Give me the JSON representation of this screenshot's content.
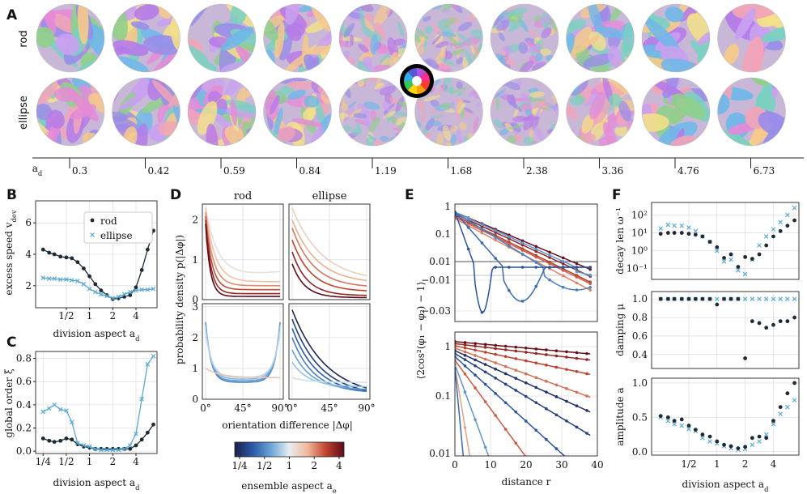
{
  "panel_letters": [
    "A",
    "B",
    "C",
    "D",
    "E",
    "F"
  ],
  "row_labels": [
    "rod",
    "ellipse"
  ],
  "panel_a": {
    "axis_label": "a",
    "axis_label_sub": "d",
    "aspects": [
      "0.3",
      "0.42",
      "0.59",
      "0.84",
      "1.19",
      "1.68",
      "2.38",
      "3.36",
      "4.76",
      "6.73"
    ],
    "texture_contrast_rod": [
      0.9,
      0.85,
      0.8,
      0.7,
      0.35,
      0.2,
      0.25,
      0.6,
      0.85,
      1.0
    ],
    "texture_contrast_ellipse": [
      0.75,
      0.7,
      0.65,
      0.6,
      0.2,
      0.15,
      0.2,
      0.5,
      0.85,
      0.95
    ]
  },
  "colors": {
    "rod": "#1f2a33",
    "ellipse": "#5aa9d4",
    "grid": "#d6d6d6"
  },
  "chart_data": [
    {
      "id": "B",
      "type": "line",
      "ylabel": "excess speed v_dev",
      "xlabel": "division aspect a_d",
      "xscale": "log2",
      "xlim": [
        0.2,
        7.5
      ],
      "ylim": [
        0.6,
        7.4
      ],
      "xticks": [
        {
          "v": 0.5,
          "label": "1/2"
        },
        {
          "v": 1,
          "label": "1"
        },
        {
          "v": 2,
          "label": "2"
        },
        {
          "v": 4,
          "label": "4"
        }
      ],
      "yticks": [
        {
          "v": 2,
          "label": "2"
        },
        {
          "v": 4,
          "label": "4"
        },
        {
          "v": 6,
          "label": "6"
        }
      ],
      "legend": [
        "rod",
        "ellipse"
      ],
      "series": [
        {
          "name": "rod",
          "marker": "dot",
          "x": [
            0.25,
            0.3,
            0.35,
            0.42,
            0.5,
            0.59,
            0.7,
            0.84,
            1,
            1.19,
            1.41,
            1.68,
            2,
            2.38,
            2.83,
            3.36,
            4,
            4.76,
            5.66,
            6.73
          ],
          "y": [
            4.3,
            4.1,
            4.0,
            3.85,
            3.8,
            3.75,
            3.5,
            3.1,
            2.6,
            2.1,
            1.7,
            1.4,
            1.15,
            1.2,
            1.3,
            1.4,
            1.9,
            3.0,
            4.3,
            5.5
          ]
        },
        {
          "name": "ellipse",
          "marker": "x",
          "x": [
            0.25,
            0.3,
            0.35,
            0.42,
            0.5,
            0.59,
            0.7,
            0.84,
            1,
            1.19,
            1.41,
            1.68,
            2,
            2.38,
            2.83,
            3.36,
            4,
            4.76,
            5.66,
            6.73
          ],
          "y": [
            2.5,
            2.45,
            2.45,
            2.4,
            2.4,
            2.35,
            2.3,
            2.1,
            1.8,
            1.6,
            1.45,
            1.35,
            1.2,
            1.3,
            1.45,
            1.6,
            1.7,
            1.75,
            1.75,
            1.8
          ]
        }
      ]
    },
    {
      "id": "C",
      "type": "line",
      "ylabel": "global order ξ",
      "xlabel": "division aspect a_d",
      "xscale": "log2",
      "xlim": [
        0.2,
        7.5
      ],
      "ylim": [
        -0.02,
        0.86
      ],
      "xticks": [
        {
          "v": 0.25,
          "label": "1/4"
        },
        {
          "v": 0.5,
          "label": "1/2"
        },
        {
          "v": 1,
          "label": "1"
        },
        {
          "v": 2,
          "label": "2"
        },
        {
          "v": 4,
          "label": "4"
        }
      ],
      "yticks": [
        {
          "v": 0,
          "label": "0.0"
        },
        {
          "v": 0.2,
          "label": "0.2"
        },
        {
          "v": 0.4,
          "label": "0.4"
        },
        {
          "v": 0.6,
          "label": "0.6"
        },
        {
          "v": 0.8,
          "label": "0.8"
        }
      ],
      "series": [
        {
          "name": "rod",
          "marker": "dot",
          "x": [
            0.25,
            0.3,
            0.35,
            0.42,
            0.5,
            0.59,
            0.7,
            0.84,
            1,
            1.19,
            1.41,
            1.68,
            2,
            2.38,
            2.83,
            3.36,
            4,
            4.76,
            5.66,
            6.73
          ],
          "y": [
            0.11,
            0.09,
            0.08,
            0.09,
            0.11,
            0.1,
            0.06,
            0.04,
            0.03,
            0.02,
            0.02,
            0.02,
            0.02,
            0.02,
            0.02,
            0.02,
            0.05,
            0.1,
            0.16,
            0.23
          ]
        },
        {
          "name": "ellipse",
          "marker": "x",
          "x": [
            0.25,
            0.3,
            0.35,
            0.42,
            0.5,
            0.59,
            0.7,
            0.84,
            1,
            1.19,
            1.41,
            1.68,
            2,
            2.38,
            2.83,
            3.36,
            4,
            4.76,
            5.66,
            6.73
          ],
          "y": [
            0.34,
            0.37,
            0.4,
            0.36,
            0.35,
            0.25,
            0.07,
            0.05,
            0.04,
            0.02,
            0.01,
            0.01,
            0.01,
            0.01,
            0.02,
            0.05,
            0.15,
            0.45,
            0.75,
            0.82
          ]
        }
      ]
    },
    {
      "id": "D",
      "type": "line",
      "col_titles": [
        "rod",
        "ellipse"
      ],
      "ylabel": "probability density p(|Δφ|)",
      "xlabel": "orientation difference |Δφ|",
      "xticks": [
        "0°",
        "45°",
        "90°"
      ],
      "yticks_top": [
        "0",
        "1",
        "2"
      ],
      "yticks_bottom": [
        "0",
        "1",
        "2",
        "3"
      ],
      "ylim_top": [
        0,
        2.4
      ],
      "ylim_bottom": [
        0,
        3.1
      ],
      "panels": [
        {
          "pos": "top-rod",
          "ids": [
            0.55,
            0.7,
            0.85,
            1.0,
            1.15,
            1.3
          ],
          "curves": [
            {
              "a": 2.3,
              "k": 6,
              "b": 0.55,
              "t": "rise"
            },
            {
              "a": 2.3,
              "k": 8,
              "b": 0.45,
              "t": "flat"
            },
            {
              "a": 2.2,
              "k": 10,
              "b": 0.35,
              "t": "flat"
            },
            {
              "a": 2.1,
              "k": 12,
              "b": 0.25,
              "t": "flat"
            },
            {
              "a": 2.0,
              "k": 14,
              "b": 0.15,
              "t": "flat"
            },
            {
              "a": 1.9,
              "k": 16,
              "b": 0.08,
              "t": "flat"
            }
          ]
        },
        {
          "pos": "top-ellipse",
          "curves": [
            {
              "a": 2.3,
              "k": 2.5,
              "b": 0.45,
              "t": "flat"
            },
            {
              "a": 2.0,
              "k": 3,
              "b": 0.4,
              "t": "flat"
            },
            {
              "a": 1.8,
              "k": 3.5,
              "b": 0.3,
              "t": "flat"
            },
            {
              "a": 1.5,
              "k": 4,
              "b": 0.2,
              "t": "flat"
            },
            {
              "a": 1.2,
              "k": 5,
              "b": 0.1,
              "t": "flat"
            },
            {
              "a": 0.9,
              "k": 6,
              "b": 0.05,
              "t": "flat"
            }
          ]
        },
        {
          "pos": "bottom-rod",
          "curves": [
            {
              "a": 2.5,
              "k": 14,
              "b": 0.55,
              "t": "u"
            },
            {
              "a": 2.5,
              "k": 14,
              "b": 0.6,
              "t": "u"
            },
            {
              "a": 2.4,
              "k": 13,
              "b": 0.65,
              "t": "u"
            },
            {
              "a": 2.2,
              "k": 12,
              "b": 0.7,
              "t": "u"
            },
            {
              "a": 1.0,
              "k": 5,
              "b": 0.7,
              "t": "flat"
            }
          ]
        },
        {
          "pos": "bottom-ellipse",
          "curves": [
            {
              "a": 2.9,
              "k": 2.2,
              "b": 0.05,
              "t": "flat"
            },
            {
              "a": 2.6,
              "k": 2.6,
              "b": 0.1,
              "t": "flat"
            },
            {
              "a": 2.3,
              "k": 3.0,
              "b": 0.15,
              "t": "flat"
            },
            {
              "a": 2.0,
              "k": 3.5,
              "b": 0.2,
              "t": "flat"
            },
            {
              "a": 1.6,
              "k": 4,
              "b": 0.3,
              "t": "flat"
            },
            {
              "a": 1.2,
              "k": 4.5,
              "b": 0.4,
              "t": "flat"
            },
            {
              "a": 0.7,
              "k": 5,
              "b": 0.55,
              "t": "flat"
            }
          ]
        }
      ]
    },
    {
      "id": "E",
      "type": "line",
      "ylabel": "⟨2cos²(φ₁ − φ₂) − 1⟩",
      "xlabel": "distance r",
      "xlim": [
        0,
        40
      ],
      "xticks": [
        "0",
        "10",
        "20",
        "30",
        "40"
      ],
      "yticks_top": [
        "1",
        "0.1",
        "0.01",
        "−0.01",
        "−0.03"
      ],
      "yticks_bottom": [
        "1",
        "0.1",
        "0.01"
      ],
      "top_curves": [
        {
          "l": 0.9,
          "r0": 35,
          "d": 0
        },
        {
          "l": 0.85,
          "r0": 32,
          "d": 0
        },
        {
          "l": 0.8,
          "r0": 30,
          "d": 0
        },
        {
          "l": 0.75,
          "r0": 30,
          "d": 0
        },
        {
          "l": 0.7,
          "r0": 28,
          "d": 0
        },
        {
          "l": 0.6,
          "r0": 30,
          "d": 0.02
        },
        {
          "l": 0.5,
          "r0": 22,
          "d": 0.02
        },
        {
          "l": 0.4,
          "r0": 12,
          "d": 0.02
        },
        {
          "l": 0.3,
          "r0": 5,
          "d": 0.015
        }
      ],
      "bottom_curves": [
        {
          "a": 0.7,
          "k": 0.003
        },
        {
          "a": 0.65,
          "k": 0.004
        },
        {
          "a": 0.6,
          "k": 0.007
        },
        {
          "a": 0.55,
          "k": 0.012
        },
        {
          "a": 0.5,
          "k": 0.015
        },
        {
          "a": 0.45,
          "k": 0.02
        },
        {
          "a": 0.4,
          "k": 0.03
        },
        {
          "a": 0.35,
          "k": 0.045
        },
        {
          "a": 0.3,
          "k": 0.09
        },
        {
          "a": 0.28,
          "k": 0.2
        },
        {
          "a": 0.26,
          "k": 0.35
        }
      ]
    },
    {
      "id": "F",
      "type": "scatter",
      "xlabel": "division aspect a_d",
      "xscale": "log2",
      "xlim": [
        0.2,
        7.5
      ],
      "xticks": [
        {
          "v": 0.5,
          "label": "1/2"
        },
        {
          "v": 1,
          "label": "1"
        },
        {
          "v": 2,
          "label": "2"
        },
        {
          "v": 4,
          "label": "4"
        }
      ],
      "subplots": [
        {
          "name": "decay",
          "ylabel": "decay len ω⁻¹",
          "yscale": "log10",
          "ylim": [
            -1.6,
            2.7
          ],
          "yticks": [
            {
              "v": -1,
              "label": "10⁻¹"
            },
            {
              "v": 0,
              "label": "10⁰"
            },
            {
              "v": 1,
              "label": "10¹"
            },
            {
              "v": 2,
              "label": "10²"
            }
          ],
          "rod": [
            0.95,
            1.0,
            1.0,
            1.0,
            0.95,
            0.9,
            0.8,
            0.5,
            0.2,
            -0.4,
            -0.2,
            -0.9,
            -0.35,
            -0.45,
            -0.2,
            0.3,
            0.8,
            1.1,
            1.4,
            1.7
          ],
          "ellipse": [
            1.25,
            1.45,
            1.4,
            1.4,
            1.3,
            1.1,
            0.8,
            0.5,
            0.0,
            -0.6,
            -0.5,
            -1.1,
            -1.3,
            -0.5,
            0.3,
            0.8,
            1.2,
            1.6,
            2.0,
            2.4
          ]
        },
        {
          "name": "damping",
          "ylabel": "damping μ",
          "ylim": [
            0.25,
            1.08
          ],
          "yticks": [
            {
              "v": 0.4,
              "label": "0.4"
            },
            {
              "v": 0.6,
              "label": "0.6"
            },
            {
              "v": 0.8,
              "label": "0.8"
            },
            {
              "v": 1.0,
              "label": "1.0"
            }
          ],
          "rod": [
            1,
            1,
            1,
            1,
            1,
            1,
            1,
            1,
            0.94,
            1,
            1,
            1,
            0.36,
            0.76,
            0.74,
            0.69,
            0.72,
            0.76,
            0.76,
            0.8
          ],
          "ellipse": [
            1,
            1,
            1,
            1,
            1,
            1,
            1,
            1,
            1,
            1,
            1,
            1,
            1,
            1,
            1,
            1,
            1,
            1,
            1,
            1
          ]
        },
        {
          "name": "amplitude",
          "ylabel": "amplitude a",
          "ylim": [
            -0.05,
            1.07
          ],
          "yticks": [
            {
              "v": 0,
              "label": "0.0"
            },
            {
              "v": 0.5,
              "label": "0.5"
            },
            {
              "v": 1.0,
              "label": "1.0"
            }
          ],
          "rod": [
            0.52,
            0.5,
            0.45,
            0.47,
            0.38,
            0.32,
            0.25,
            0.22,
            0.15,
            0.1,
            0.08,
            0.05,
            0.07,
            0.2,
            0.22,
            0.2,
            0.45,
            0.65,
            0.85,
            1.0
          ],
          "ellipse": [
            0.5,
            0.45,
            0.4,
            0.38,
            0.33,
            0.3,
            0.2,
            0.15,
            0.12,
            0.08,
            0.05,
            0.03,
            0.04,
            0.1,
            0.15,
            0.25,
            0.4,
            0.55,
            0.65,
            0.75
          ]
        }
      ],
      "x": [
        0.25,
        0.3,
        0.35,
        0.42,
        0.5,
        0.59,
        0.7,
        0.84,
        1,
        1.19,
        1.41,
        1.68,
        2,
        2.38,
        2.83,
        3.36,
        4,
        4.76,
        5.66,
        6.73
      ]
    }
  ],
  "colorbar": {
    "label": "ensemble aspect a",
    "label_sub": "e",
    "ticks": [
      "1/4",
      "1/2",
      "1",
      "2",
      "4"
    ],
    "stops": [
      "#1b1f4a",
      "#2b5aa8",
      "#6aa7d6",
      "#e8eef2",
      "#f0b89a",
      "#c0442e",
      "#5c0a1a"
    ]
  }
}
